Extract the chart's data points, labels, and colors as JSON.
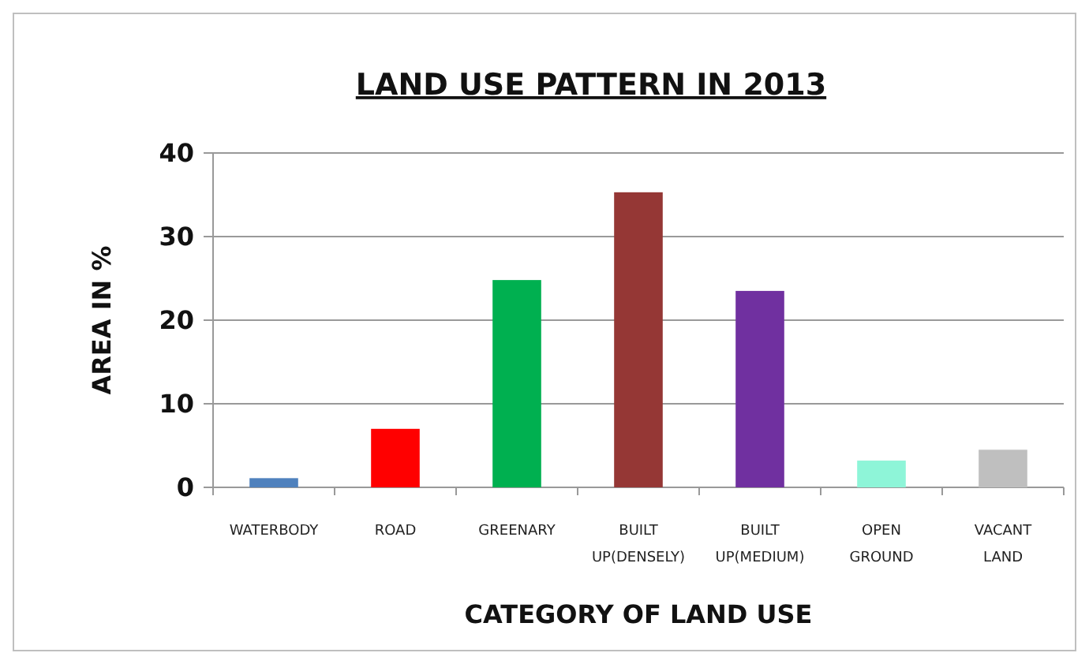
{
  "chart_data": {
    "type": "bar",
    "title": "LAND USE PATTERN IN 2013",
    "xlabel": "CATEGORY OF LAND USE",
    "ylabel": "AREA IN %",
    "categories": [
      "WATERBODY",
      "ROAD",
      "GREENARY",
      "BUILT UP(DENSELY)",
      "BUILT UP(MEDIUM)",
      "OPEN GROUND",
      "VACANT LAND"
    ],
    "values": [
      1.1,
      7,
      24.8,
      35.3,
      23.5,
      3.2,
      4.5
    ],
    "colors": [
      "#4f81bd",
      "#ff0000",
      "#00b050",
      "#953735",
      "#7030a0",
      "#8ef5d8",
      "#bfbfbf"
    ],
    "ylim": [
      0,
      40
    ],
    "yticks": [
      0,
      10,
      20,
      30,
      40
    ],
    "grid": "y"
  }
}
